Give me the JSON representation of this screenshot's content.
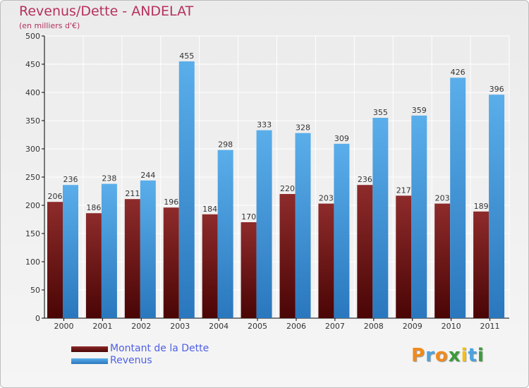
{
  "chart_data": {
    "type": "bar",
    "title": "Revenus/Dette - ANDELAT",
    "subtitle": "(en milliers d'€)",
    "categories": [
      "2000",
      "2001",
      "2002",
      "2003",
      "2004",
      "2005",
      "2006",
      "2007",
      "2008",
      "2009",
      "2010",
      "2011"
    ],
    "series": [
      {
        "name": "Montant de la Dette",
        "color": "#7a1a1a",
        "values": [
          206,
          186,
          211,
          196,
          184,
          170,
          220,
          203,
          236,
          217,
          203,
          189
        ]
      },
      {
        "name": "Revenus",
        "color": "#3d95de",
        "values": [
          236,
          238,
          244,
          455,
          298,
          333,
          328,
          309,
          355,
          359,
          426,
          396
        ]
      }
    ],
    "ylim": [
      0,
      500
    ],
    "yticks": [
      0,
      50,
      100,
      150,
      200,
      250,
      300,
      350,
      400,
      450,
      500
    ],
    "grid": true,
    "legend_position": "bottom-left",
    "data_labels": true
  },
  "logo": {
    "name": "proxiti-logo",
    "letters": [
      {
        "char": "P",
        "color": "#f08a1c"
      },
      {
        "char": "r",
        "color": "#4aa3df"
      },
      {
        "char": "o",
        "color": "#f08a1c"
      },
      {
        "char": "x",
        "color": "#3b9b3b"
      },
      {
        "char": "i",
        "color": "#f2c01e"
      },
      {
        "char": "t",
        "color": "#4aa3df"
      },
      {
        "char": "i",
        "color": "#3b9b3b"
      }
    ]
  }
}
